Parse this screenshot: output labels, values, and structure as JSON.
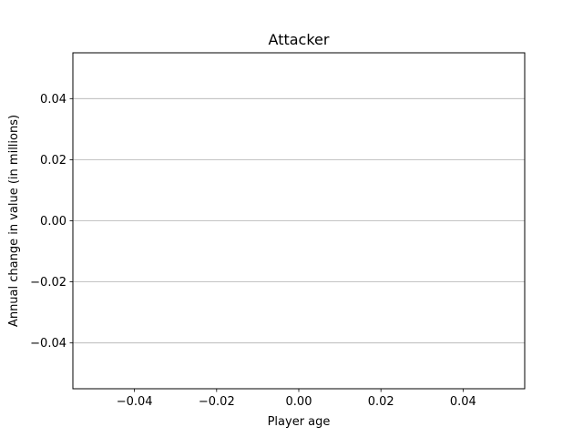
{
  "chart_data": {
    "type": "line",
    "title": "Attacker",
    "xlabel": "Player age",
    "ylabel": "Annual change in value (in millions)",
    "xlim": [
      -0.055,
      0.055
    ],
    "ylim": [
      -0.055,
      0.055
    ],
    "xticks": [
      -0.04,
      -0.02,
      0.0,
      0.02,
      0.04
    ],
    "xtick_labels": [
      "−0.04",
      "−0.02",
      "0.00",
      "0.02",
      "0.04"
    ],
    "yticks": [
      0.04,
      0.02,
      0.0,
      -0.02,
      -0.04
    ],
    "ytick_labels": [
      "0.04",
      "0.02",
      "0.00",
      "−0.02",
      "−0.04"
    ],
    "grid": "horizontal",
    "grid_color": "#b0b0b0",
    "series": []
  }
}
